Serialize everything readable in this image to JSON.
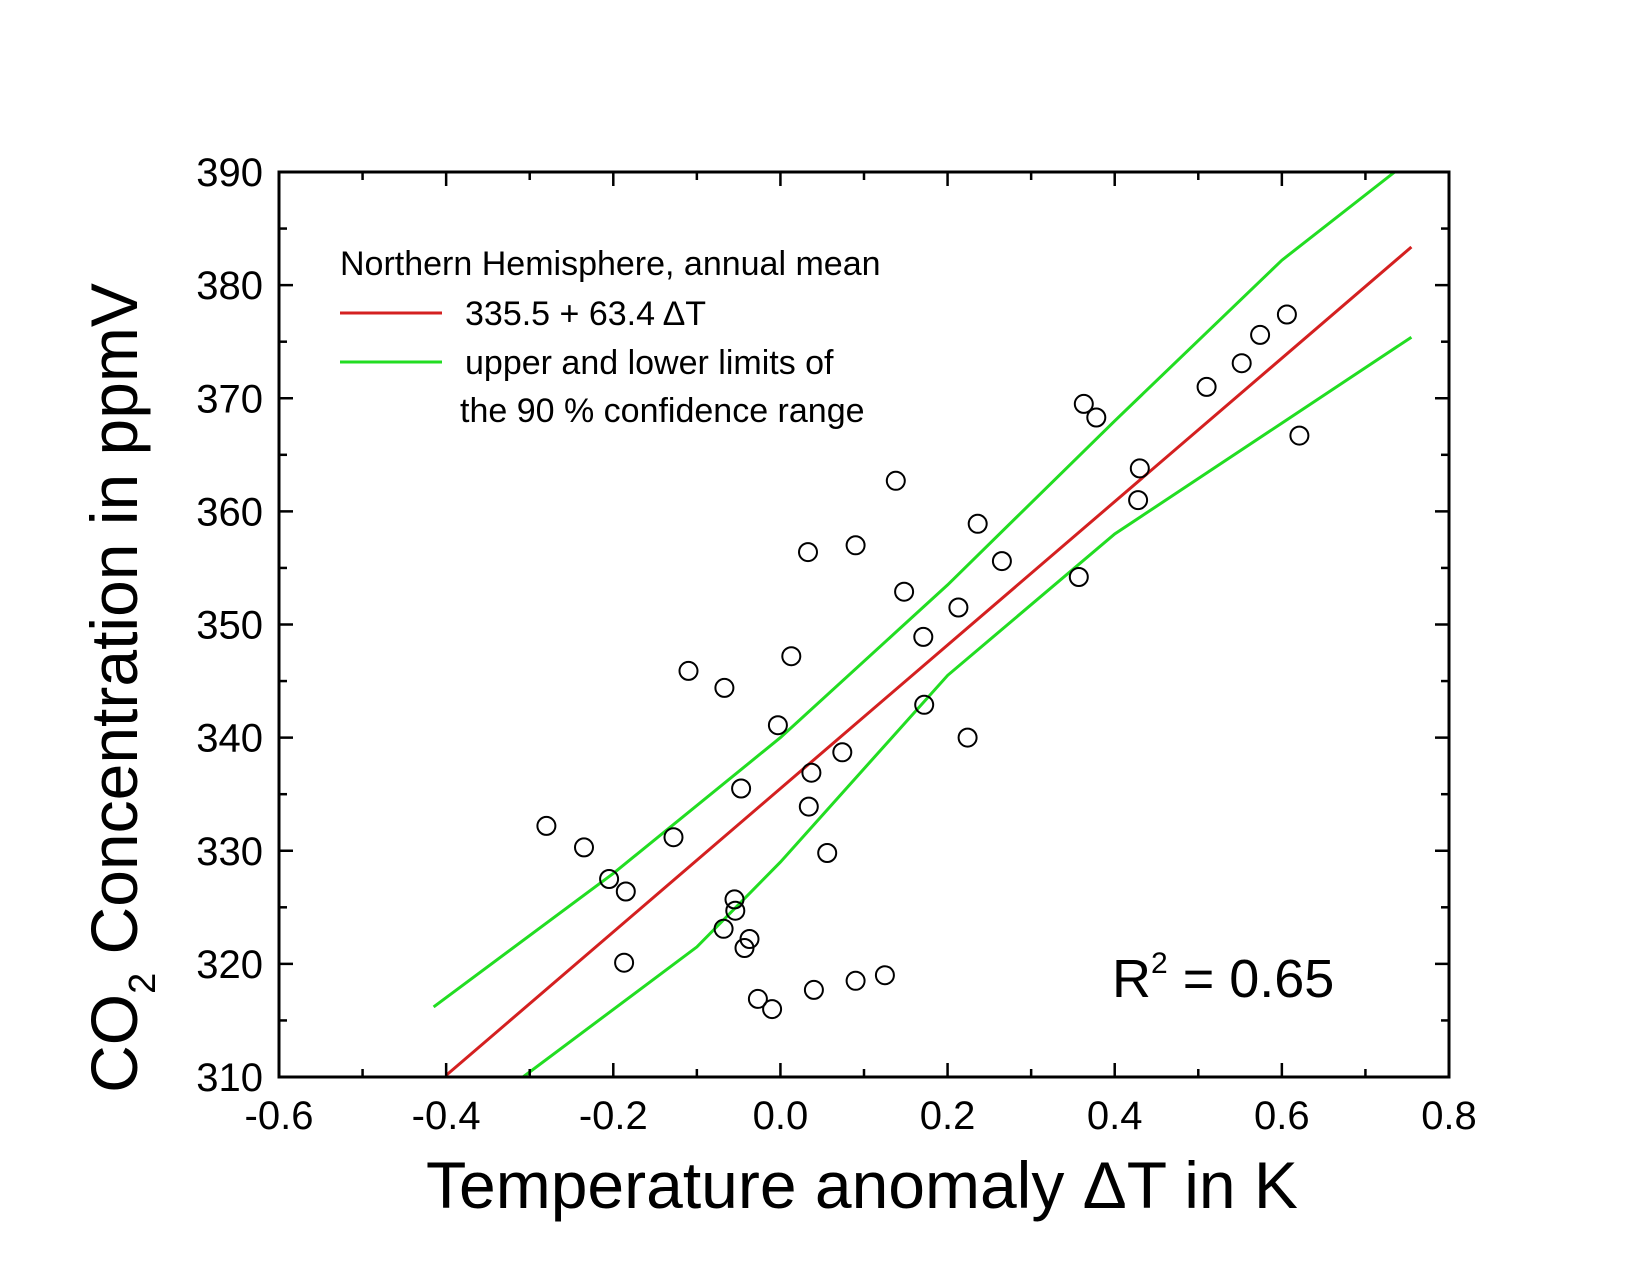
{
  "chart_data": {
    "type": "scatter",
    "title": "",
    "xlabel": "Temperature anomaly ΔT in K",
    "ylabel_parts": {
      "prefix": "CO",
      "subscript": "2",
      "suffix": " Concentration in ppmV"
    },
    "xlim": [
      -0.6,
      0.8
    ],
    "ylim": [
      310,
      390
    ],
    "x_ticks": [
      -0.6,
      -0.4,
      -0.2,
      0.0,
      0.2,
      0.4,
      0.6,
      0.8
    ],
    "x_tick_labels": [
      "-0.6",
      "-0.4",
      "-0.2",
      "0.0",
      "0.2",
      "0.4",
      "0.6",
      "0.8"
    ],
    "y_ticks": [
      310,
      320,
      330,
      340,
      350,
      360,
      370,
      380,
      390
    ],
    "y_tick_labels": [
      "310",
      "320",
      "330",
      "340",
      "350",
      "360",
      "370",
      "380",
      "390"
    ],
    "legend": {
      "title": "Northern Hemisphere, annual mean",
      "entries": [
        {
          "label": "335.5 + 63.4 ΔT",
          "color": "#d42020"
        },
        {
          "label": "upper and lower limits of",
          "label2": "the 90 % confidence range",
          "color": "#22dd22"
        }
      ]
    },
    "annotation": {
      "prefix": "R",
      "superscript": "2",
      "text": " = 0.65"
    },
    "series": [
      {
        "name": "annual mean",
        "marker": "open-circle",
        "points": [
          [
            -0.28,
            332.2
          ],
          [
            -0.235,
            330.3
          ],
          [
            -0.205,
            327.5
          ],
          [
            -0.185,
            326.4
          ],
          [
            -0.187,
            320.1
          ],
          [
            -0.128,
            331.2
          ],
          [
            -0.11,
            345.9
          ],
          [
            -0.067,
            344.4
          ],
          [
            -0.068,
            323.1
          ],
          [
            -0.055,
            325.7
          ],
          [
            -0.054,
            324.7
          ],
          [
            -0.047,
            335.5
          ],
          [
            -0.043,
            321.4
          ],
          [
            -0.037,
            322.2
          ],
          [
            -0.027,
            316.9
          ],
          [
            -0.01,
            316.0
          ],
          [
            -0.003,
            341.1
          ],
          [
            0.013,
            347.2
          ],
          [
            0.033,
            356.4
          ],
          [
            0.034,
            333.9
          ],
          [
            0.037,
            336.9
          ],
          [
            0.04,
            317.7
          ],
          [
            0.056,
            329.8
          ],
          [
            0.074,
            338.7
          ],
          [
            0.09,
            357.0
          ],
          [
            0.09,
            318.5
          ],
          [
            0.125,
            319.0
          ],
          [
            0.138,
            362.7
          ],
          [
            0.148,
            352.9
          ],
          [
            0.171,
            348.9
          ],
          [
            0.172,
            342.9
          ],
          [
            0.213,
            351.5
          ],
          [
            0.224,
            340.0
          ],
          [
            0.236,
            358.9
          ],
          [
            0.265,
            355.6
          ],
          [
            0.357,
            354.2
          ],
          [
            0.363,
            369.5
          ],
          [
            0.378,
            368.3
          ],
          [
            0.428,
            361.0
          ],
          [
            0.43,
            363.8
          ],
          [
            0.51,
            371.0
          ],
          [
            0.552,
            373.1
          ],
          [
            0.574,
            375.6
          ],
          [
            0.606,
            377.4
          ],
          [
            0.621,
            366.7
          ]
        ]
      }
    ],
    "regression": {
      "intercept": 335.5,
      "slope": 63.4,
      "x_range": [
        -0.4,
        0.755
      ],
      "color": "#d42020"
    },
    "confidence_upper": {
      "points": [
        [
          -0.415,
          316.2
        ],
        [
          -0.2,
          328.0
        ],
        [
          0.0,
          340.0
        ],
        [
          0.2,
          353.5
        ],
        [
          0.4,
          368.0
        ],
        [
          0.6,
          382.2
        ],
        [
          0.735,
          390.0
        ]
      ],
      "color": "#22dd22"
    },
    "confidence_lower": {
      "points": [
        [
          -0.308,
          310.0
        ],
        [
          -0.1,
          321.5
        ],
        [
          0.0,
          329.0
        ],
        [
          0.2,
          345.5
        ],
        [
          0.4,
          358.0
        ],
        [
          0.6,
          367.8
        ],
        [
          0.755,
          375.4
        ]
      ],
      "color": "#22dd22"
    }
  }
}
